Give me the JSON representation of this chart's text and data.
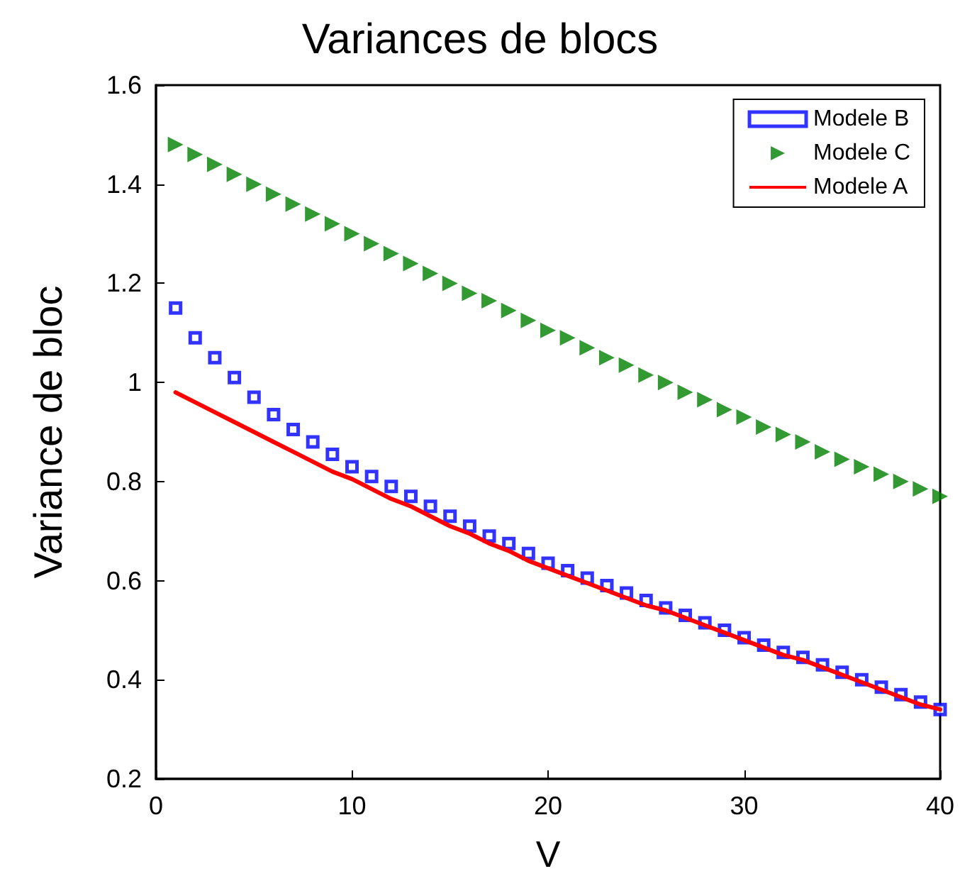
{
  "chart_data": {
    "type": "line",
    "title": "Variances de blocs",
    "xlabel": "V",
    "ylabel": "Variance de bloc",
    "x": [
      1,
      2,
      3,
      4,
      5,
      6,
      7,
      8,
      9,
      10,
      11,
      12,
      13,
      14,
      15,
      16,
      17,
      18,
      19,
      20,
      21,
      22,
      23,
      24,
      25,
      26,
      27,
      28,
      29,
      30,
      31,
      32,
      33,
      34,
      35,
      36,
      37,
      38,
      39,
      40
    ],
    "series": [
      {
        "name": "Modele B",
        "type": "scatter",
        "marker": "square",
        "color": "#0000ff",
        "values": [
          1.15,
          1.09,
          1.05,
          1.01,
          0.97,
          0.935,
          0.905,
          0.88,
          0.855,
          0.83,
          0.81,
          0.79,
          0.77,
          0.75,
          0.73,
          0.71,
          0.69,
          0.675,
          0.655,
          0.635,
          0.62,
          0.605,
          0.59,
          0.575,
          0.56,
          0.545,
          0.53,
          0.515,
          0.5,
          0.485,
          0.47,
          0.455,
          0.445,
          0.43,
          0.415,
          0.4,
          0.385,
          0.37,
          0.355,
          0.34
        ]
      },
      {
        "name": "Modele C",
        "type": "scatter",
        "marker": "triangle",
        "color": "#008000",
        "values": [
          1.48,
          1.46,
          1.44,
          1.42,
          1.4,
          1.38,
          1.36,
          1.34,
          1.32,
          1.3,
          1.28,
          1.26,
          1.24,
          1.22,
          1.2,
          1.18,
          1.165,
          1.145,
          1.125,
          1.105,
          1.09,
          1.07,
          1.05,
          1.035,
          1.015,
          1.0,
          0.98,
          0.965,
          0.945,
          0.93,
          0.91,
          0.895,
          0.88,
          0.86,
          0.845,
          0.83,
          0.815,
          0.8,
          0.785,
          0.77
        ]
      },
      {
        "name": "Modele A",
        "marker": "none",
        "line_style": "solid",
        "color": "#ff0000",
        "values": [
          0.98,
          0.96,
          0.94,
          0.92,
          0.9,
          0.88,
          0.86,
          0.84,
          0.82,
          0.805,
          0.785,
          0.765,
          0.75,
          0.73,
          0.71,
          0.695,
          0.675,
          0.66,
          0.64,
          0.625,
          0.61,
          0.595,
          0.58,
          0.565,
          0.55,
          0.54,
          0.525,
          0.51,
          0.495,
          0.48,
          0.465,
          0.45,
          0.44,
          0.425,
          0.41,
          0.395,
          0.38,
          0.365,
          0.35,
          0.34
        ]
      }
    ],
    "xlim": [
      0,
      40
    ],
    "xticks": [
      0,
      10,
      20,
      30,
      40
    ],
    "ylim": [
      0.2,
      1.6
    ],
    "yticks": [
      0.2,
      0.4,
      0.6,
      0.8,
      1,
      1.2,
      1.4,
      1.6
    ],
    "grid": false,
    "legend": "top right"
  }
}
